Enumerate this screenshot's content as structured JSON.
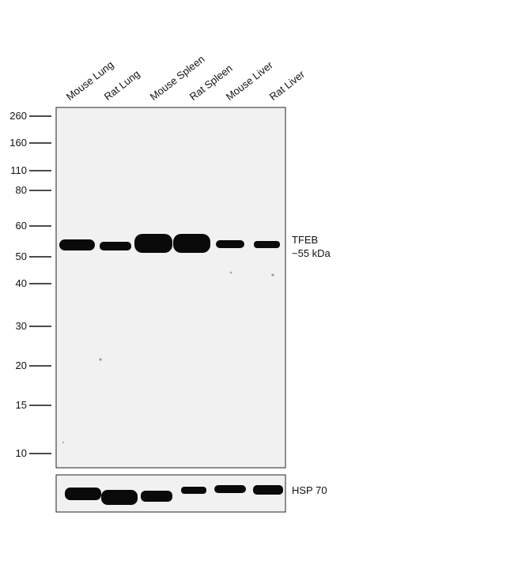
{
  "lanes": [
    "Mouse Lung",
    "Rat Lung",
    "Mouse Spleen",
    "Rat Spleen",
    "Mouse Liver",
    "Rat Liver"
  ],
  "markers": [
    "260",
    "160",
    "110",
    "80",
    "60",
    "50",
    "40",
    "30",
    "20",
    "15",
    "10"
  ],
  "target": {
    "name": "TFEB",
    "size": "~55 kDa"
  },
  "control": {
    "name": "HSP 70"
  },
  "colors": {
    "band": "#0a0a0a",
    "membrane": "#f1f1f1",
    "frame": "#222222"
  }
}
